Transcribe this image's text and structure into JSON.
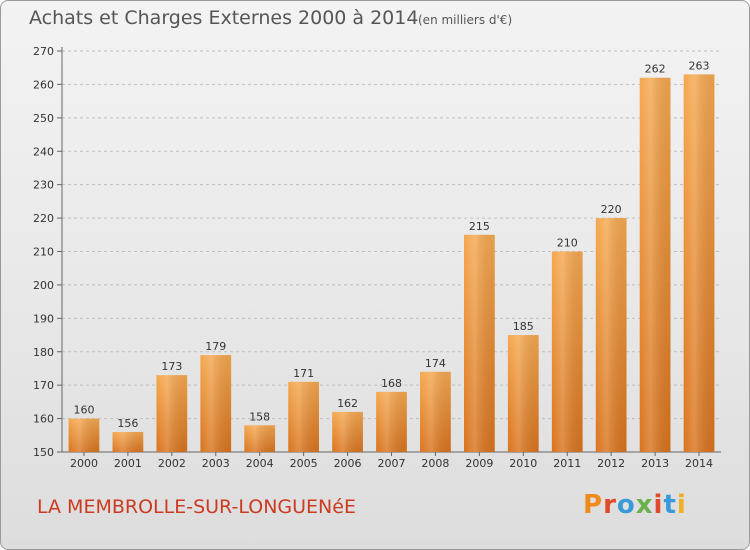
{
  "header": {
    "title": "Achats et Charges Externes 2000 à 2014",
    "subtitle": "(en milliers d'€)"
  },
  "footer": {
    "commune": "LA MEMBROLLE-SUR-LONGUENéE",
    "brand": "Proxiti"
  },
  "colors": {
    "bar_light": "#f5a850",
    "bar_dark": "#d9741e",
    "title": "#555555",
    "commune": "#cc3a20",
    "grid": "#bfbfbf",
    "logo": [
      "#f08a1c",
      "#e04a2a",
      "#3a9ad9",
      "#6ab04c",
      "#e04a2a",
      "#3a9ad9",
      "#f0b020"
    ]
  },
  "chart_data": {
    "type": "bar",
    "title": "Achats et Charges Externes 2000 à 2014",
    "subtitle": "(en milliers d'€)",
    "xlabel": "",
    "ylabel": "",
    "categories": [
      "2000",
      "2001",
      "2002",
      "2003",
      "2004",
      "2005",
      "2006",
      "2007",
      "2008",
      "2009",
      "2010",
      "2011",
      "2012",
      "2013",
      "2014"
    ],
    "values": [
      160,
      156,
      173,
      179,
      158,
      171,
      162,
      168,
      174,
      215,
      185,
      210,
      220,
      262,
      263
    ],
    "ylim": [
      150,
      270
    ],
    "yticks": [
      150,
      160,
      170,
      180,
      190,
      200,
      210,
      220,
      230,
      240,
      250,
      260,
      270
    ],
    "grid": true,
    "legend": "none"
  }
}
